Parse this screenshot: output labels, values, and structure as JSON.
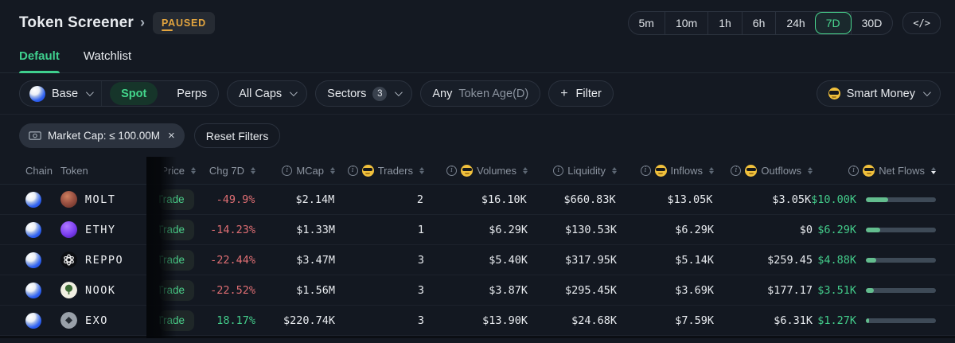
{
  "header": {
    "title": "Token Screener",
    "chevron": "›",
    "status_badge": "PAUSED",
    "timeframes": [
      "5m",
      "10m",
      "1h",
      "6h",
      "24h",
      "7D",
      "30D"
    ],
    "active_timeframe": "7D",
    "code_button_label": "</>"
  },
  "tabs": {
    "default": "Default",
    "watchlist": "Watchlist",
    "active": "Default"
  },
  "filters": {
    "chain": "Base",
    "market_spot": "Spot",
    "market_perps": "Perps",
    "active_market": "Spot",
    "caps": "All Caps",
    "sectors_label": "Sectors",
    "sectors_count": "3",
    "token_age_value": "Any",
    "token_age_label": "Token Age(D)",
    "add_filter": "+",
    "add_filter_label": "Filter",
    "smart_money": "Smart Money",
    "active_chip": "Market Cap: ≤ 100.00M",
    "chip_close": "×",
    "reset": "Reset Filters"
  },
  "ui": {
    "trade_label": "Trade"
  },
  "colors": {
    "accent_green": "#3fcf8e",
    "negative_red": "#df6e73",
    "paused_amber": "#e3a53f",
    "bar_fill": "#63bd8e"
  },
  "table": {
    "cols": {
      "chain": "Chain",
      "token": "Token",
      "price": "Price",
      "chg": "Chg 7D",
      "mcap": "MCap",
      "traders": "Traders",
      "volumes": "Volumes",
      "liquidity": "Liquidity",
      "inflows": "Inflows",
      "outflows": "Outflows",
      "netflows": "Net Flows"
    },
    "sorted_by": "Net Flows descending",
    "rows": [
      {
        "token": "MOLT",
        "chg": "-49.9%",
        "mcap": "$2.14M",
        "traders": "2",
        "volumes": "$16.10K",
        "liquidity": "$660.83K",
        "inflows": "$13.05K",
        "outflows": "$3.05K",
        "netflows": "$10.00K",
        "bar": 0.32
      },
      {
        "token": "ETHY",
        "chg": "-14.23%",
        "mcap": "$1.33M",
        "traders": "1",
        "volumes": "$6.29K",
        "liquidity": "$130.53K",
        "inflows": "$6.29K",
        "outflows": "$0",
        "netflows": "$6.29K",
        "bar": 0.2
      },
      {
        "token": "REPPO",
        "chg": "-22.44%",
        "mcap": "$3.47M",
        "traders": "3",
        "volumes": "$5.40K",
        "liquidity": "$317.95K",
        "inflows": "$5.14K",
        "outflows": "$259.45",
        "netflows": "$4.88K",
        "bar": 0.15
      },
      {
        "token": "NOOK",
        "chg": "-22.52%",
        "mcap": "$1.56M",
        "traders": "3",
        "volumes": "$3.87K",
        "liquidity": "$295.45K",
        "inflows": "$3.69K",
        "outflows": "$177.17",
        "netflows": "$3.51K",
        "bar": 0.11
      },
      {
        "token": "EXO",
        "chg": "18.17%",
        "mcap": "$220.74K",
        "traders": "3",
        "volumes": "$13.90K",
        "liquidity": "$24.68K",
        "inflows": "$7.59K",
        "outflows": "$6.31K",
        "netflows": "$1.27K",
        "bar": 0.05
      }
    ]
  }
}
